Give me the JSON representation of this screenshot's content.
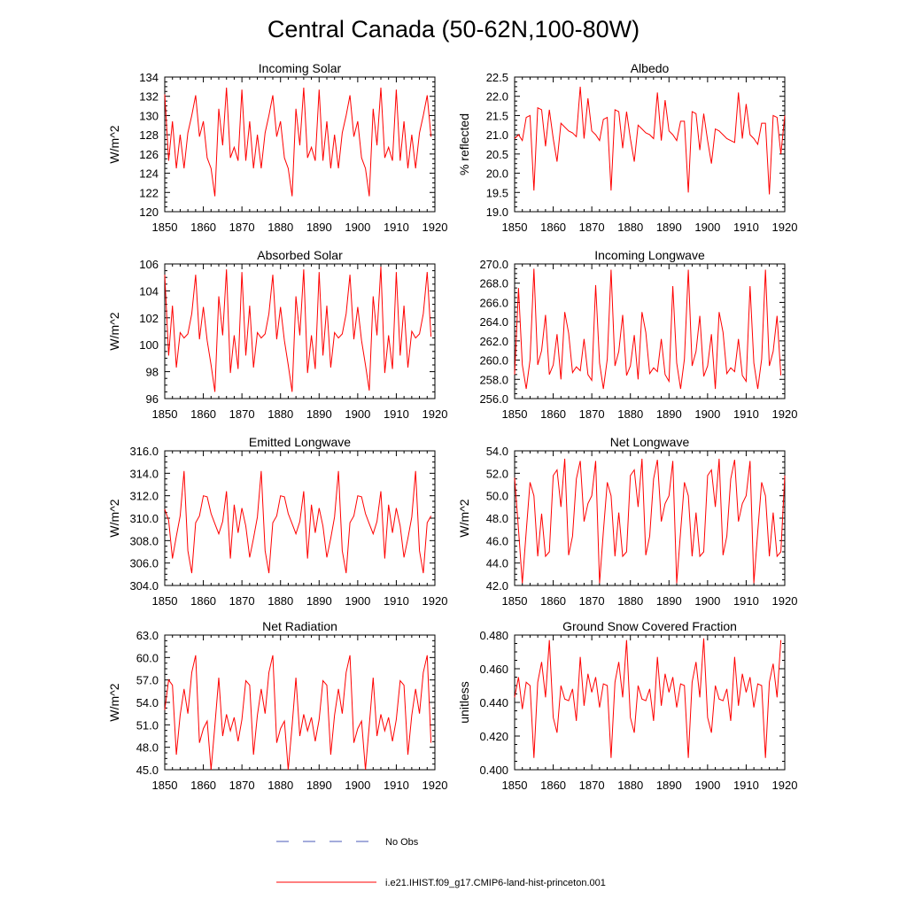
{
  "figure": {
    "title": "Central Canada (50-62N,100-80W)",
    "legend": {
      "obs_label": "No Obs",
      "model_label": "i.e21.IHIST.f09_g17.CMIP6-land-hist-princeton.001",
      "obs_color": "#4a5ab8",
      "model_color": "#ff0000"
    }
  },
  "chart_data": [
    {
      "type": "line",
      "title": "Incoming Solar",
      "ylabel": "W/m^2",
      "xlim": [
        1850,
        1920
      ],
      "ylim": [
        120,
        134
      ],
      "xticks": [
        1850,
        1860,
        1870,
        1880,
        1890,
        1900,
        1910,
        1920
      ],
      "yticks": [
        "120",
        "122",
        "124",
        "126",
        "128",
        "130",
        "132",
        "134"
      ],
      "x_start": 1850,
      "series": [
        {
          "color": "#ff0000",
          "values": [
            132.2,
            125.3,
            129.4,
            124.5,
            128.0,
            124.5,
            128.2,
            130.0,
            132.1,
            127.8,
            129.4,
            125.6,
            124.5,
            121.6,
            130.7,
            126.9,
            132.9,
            125.6,
            126.7,
            125.3,
            132.7,
            125.3,
            129.4,
            124.5,
            128.0,
            124.5,
            128.2,
            130.0,
            132.1,
            127.8,
            129.4,
            125.6,
            124.5,
            121.6,
            130.7,
            126.9,
            132.9,
            125.6,
            126.7,
            125.3,
            132.7,
            125.3,
            129.4,
            124.5,
            128.0,
            124.5,
            128.2,
            130.0,
            132.1,
            127.8,
            129.4,
            125.6,
            124.5,
            121.6,
            130.7,
            126.9,
            132.9,
            125.6,
            126.7,
            125.3,
            132.7,
            125.3,
            129.4,
            124.5,
            128.0,
            124.5,
            128.2,
            130.0,
            132.1,
            127.8
          ]
        }
      ]
    },
    {
      "type": "line",
      "title": "Albedo",
      "ylabel": "% reflected",
      "xlim": [
        1850,
        1920
      ],
      "ylim": [
        19.0,
        22.5
      ],
      "xticks": [
        1850,
        1860,
        1870,
        1880,
        1890,
        1900,
        1910,
        1920
      ],
      "yticks": [
        "19.0",
        "19.5",
        "20.0",
        "20.5",
        "21.0",
        "21.5",
        "22.0",
        "22.5"
      ],
      "x_start": 1850,
      "series": [
        {
          "color": "#ff0000",
          "values": [
            20.9,
            21.0,
            20.85,
            21.45,
            21.5,
            19.55,
            21.7,
            21.65,
            20.7,
            21.65,
            20.9,
            20.3,
            21.3,
            21.2,
            21.1,
            21.05,
            20.95,
            22.25,
            20.9,
            21.95,
            21.1,
            21.0,
            20.85,
            21.4,
            21.45,
            19.55,
            21.65,
            21.6,
            20.65,
            21.6,
            20.9,
            20.3,
            21.25,
            21.15,
            21.05,
            21.0,
            20.9,
            22.1,
            20.85,
            21.9,
            21.1,
            21.0,
            20.85,
            21.35,
            21.35,
            19.5,
            21.6,
            21.55,
            20.6,
            21.55,
            20.85,
            20.25,
            21.15,
            21.1,
            21.0,
            20.9,
            20.85,
            20.8,
            22.1,
            20.9,
            21.8,
            21.0,
            20.9,
            20.75,
            21.3,
            21.3,
            19.45,
            21.5,
            21.45,
            20.5,
            21.5
          ]
        }
      ]
    },
    {
      "type": "line",
      "title": "Absorbed Solar",
      "ylabel": "W/m^2",
      "xlim": [
        1850,
        1920
      ],
      "ylim": [
        96,
        106
      ],
      "xticks": [
        1850,
        1860,
        1870,
        1880,
        1890,
        1900,
        1910,
        1920
      ],
      "yticks": [
        "96",
        "98",
        "100",
        "102",
        "104",
        "106"
      ],
      "x_start": 1850,
      "series": [
        {
          "color": "#ff0000",
          "values": [
            105.2,
            99.2,
            102.9,
            98.3,
            100.9,
            100.5,
            100.8,
            102.3,
            105.2,
            100.4,
            102.8,
            100.3,
            98.5,
            96.5,
            103.6,
            100.7,
            105.6,
            97.9,
            100.7,
            98.2,
            105.4,
            99.2,
            102.9,
            98.3,
            100.9,
            100.5,
            100.8,
            102.3,
            105.2,
            100.4,
            102.8,
            100.3,
            98.5,
            96.5,
            103.6,
            100.7,
            105.6,
            97.9,
            100.7,
            98.2,
            105.4,
            99.2,
            102.9,
            98.3,
            100.9,
            100.5,
            100.8,
            102.3,
            105.2,
            100.4,
            102.8,
            100.3,
            98.5,
            96.6,
            103.6,
            100.7,
            105.8,
            97.9,
            100.7,
            98.2,
            105.4,
            99.2,
            102.9,
            98.3,
            101.0,
            100.5,
            100.8,
            102.3,
            105.4,
            100.6
          ]
        }
      ]
    },
    {
      "type": "line",
      "title": "Incoming Longwave",
      "ylabel": "",
      "xlim": [
        1850,
        1920
      ],
      "ylim": [
        256.0,
        270.0
      ],
      "xticks": [
        1850,
        1860,
        1870,
        1880,
        1890,
        1900,
        1910,
        1920
      ],
      "yticks": [
        "256.0",
        "258.0",
        "260.0",
        "262.0",
        "264.0",
        "266.0",
        "268.0",
        "270.0"
      ],
      "x_start": 1850,
      "series": [
        {
          "color": "#ff0000",
          "values": [
            258.5,
            267.5,
            259.5,
            257.0,
            260.0,
            269.5,
            259.5,
            261.0,
            264.7,
            258.5,
            259.5,
            262.7,
            258.0,
            265.0,
            262.8,
            258.7,
            259.3,
            258.9,
            262.2,
            258.5,
            257.9,
            267.8,
            259.7,
            257.0,
            260.1,
            269.4,
            259.4,
            260.9,
            264.7,
            258.4,
            259.4,
            262.6,
            258.0,
            265.0,
            262.9,
            258.6,
            259.2,
            258.8,
            262.2,
            258.5,
            257.8,
            267.7,
            259.7,
            257.0,
            260.1,
            269.4,
            259.4,
            260.9,
            264.6,
            258.3,
            259.4,
            262.7,
            257.0,
            265.0,
            262.9,
            258.6,
            259.2,
            258.8,
            262.2,
            258.4,
            257.8,
            267.7,
            259.7,
            257.0,
            260.1,
            269.4,
            259.4,
            260.9,
            264.6,
            258.4
          ]
        }
      ]
    },
    {
      "type": "line",
      "title": "Emitted Longwave",
      "ylabel": "W/m^2",
      "xlim": [
        1850,
        1920
      ],
      "ylim": [
        304.0,
        316.0
      ],
      "xticks": [
        1850,
        1860,
        1870,
        1880,
        1890,
        1900,
        1910,
        1920
      ],
      "yticks": [
        "304.0",
        "306.0",
        "308.0",
        "310.0",
        "312.0",
        "314.0",
        "316.0"
      ],
      "x_start": 1850,
      "series": [
        {
          "color": "#ff0000",
          "values": [
            310.8,
            309.8,
            306.4,
            308.4,
            310.2,
            314.2,
            307.1,
            305.1,
            309.6,
            310.2,
            312.0,
            311.9,
            310.4,
            309.5,
            308.6,
            309.7,
            312.4,
            306.4,
            311.2,
            308.7,
            310.9,
            309.3,
            306.5,
            308.2,
            310.1,
            314.2,
            307.1,
            305.1,
            309.6,
            310.2,
            312.0,
            311.9,
            310.4,
            309.5,
            308.6,
            309.7,
            312.4,
            306.4,
            311.2,
            308.7,
            310.9,
            309.3,
            306.5,
            308.2,
            310.1,
            314.2,
            307.1,
            305.1,
            309.6,
            310.2,
            312.0,
            311.9,
            310.4,
            309.5,
            308.6,
            309.7,
            312.4,
            306.4,
            311.2,
            308.7,
            310.9,
            309.3,
            306.5,
            308.2,
            310.1,
            314.2,
            307.1,
            305.1,
            309.6,
            310.2
          ]
        }
      ]
    },
    {
      "type": "line",
      "title": "Net Longwave",
      "ylabel": "W/m^2",
      "xlim": [
        1850,
        1920
      ],
      "ylim": [
        42.0,
        54.0
      ],
      "xticks": [
        1850,
        1860,
        1870,
        1880,
        1890,
        1900,
        1910,
        1920
      ],
      "yticks": [
        "42.0",
        "44.0",
        "46.0",
        "48.0",
        "50.0",
        "52.0",
        "54.0"
      ],
      "x_start": 1850,
      "series": [
        {
          "color": "#ff0000",
          "values": [
            51.6,
            47.0,
            42.2,
            46.8,
            51.2,
            50.0,
            44.6,
            48.4,
            44.6,
            45.0,
            51.8,
            52.3,
            49.0,
            53.3,
            44.7,
            46.4,
            51.5,
            53.1,
            47.7,
            49.3,
            50.0,
            53.1,
            42.2,
            46.8,
            51.2,
            50.0,
            44.6,
            48.5,
            44.6,
            45.0,
            51.8,
            52.3,
            49.0,
            53.3,
            44.7,
            46.4,
            51.5,
            53.2,
            47.7,
            49.3,
            50.0,
            53.1,
            42.2,
            46.8,
            51.2,
            50.0,
            44.6,
            48.5,
            44.6,
            45.0,
            51.8,
            52.3,
            49.0,
            53.3,
            44.7,
            46.4,
            51.5,
            53.2,
            47.7,
            49.3,
            50.0,
            53.1,
            42.2,
            46.8,
            51.2,
            50.0,
            44.6,
            48.5,
            44.6,
            45.0,
            51.8
          ]
        }
      ]
    },
    {
      "type": "line",
      "title": "Net Radiation",
      "ylabel": "W/m^2",
      "xlim": [
        1850,
        1920
      ],
      "ylim": [
        45.0,
        63.0
      ],
      "xticks": [
        1850,
        1860,
        1870,
        1880,
        1890,
        1900,
        1910,
        1920
      ],
      "yticks": [
        "45.0",
        "48.0",
        "51.0",
        "54.0",
        "57.0",
        "60.0",
        "63.0"
      ],
      "x_start": 1850,
      "series": [
        {
          "color": "#ff0000",
          "values": [
            53.0,
            57.0,
            56.3,
            47.0,
            52.3,
            55.8,
            52.5,
            58.0,
            60.3,
            48.6,
            50.5,
            51.5,
            45.0,
            50.9,
            57.3,
            49.5,
            52.4,
            50.2,
            52.0,
            48.8,
            51.7,
            56.9,
            56.3,
            47.0,
            52.3,
            55.8,
            52.5,
            58.0,
            60.3,
            48.6,
            50.5,
            51.5,
            45.0,
            50.9,
            57.3,
            49.5,
            52.4,
            50.2,
            52.0,
            48.8,
            51.7,
            56.9,
            56.3,
            47.0,
            52.3,
            55.8,
            52.5,
            58.0,
            60.3,
            48.6,
            50.5,
            51.5,
            45.0,
            50.9,
            57.3,
            49.5,
            52.4,
            50.2,
            52.0,
            48.8,
            51.7,
            56.9,
            56.3,
            47.0,
            52.3,
            55.8,
            52.5,
            58.0,
            60.3,
            48.6
          ]
        }
      ]
    },
    {
      "type": "line",
      "title": "Ground Snow Covered Fraction",
      "ylabel": "unitless",
      "xlim": [
        1850,
        1920
      ],
      "ylim": [
        0.4,
        0.48
      ],
      "xticks": [
        1850,
        1860,
        1870,
        1880,
        1890,
        1900,
        1910,
        1920
      ],
      "yticks": [
        "0.400",
        "0.420",
        "0.440",
        "0.460",
        "0.480"
      ],
      "x_start": 1850,
      "series": [
        {
          "color": "#ff0000",
          "values": [
            0.443,
            0.455,
            0.436,
            0.452,
            0.45,
            0.407,
            0.452,
            0.464,
            0.443,
            0.477,
            0.431,
            0.422,
            0.45,
            0.442,
            0.441,
            0.448,
            0.429,
            0.467,
            0.438,
            0.457,
            0.446,
            0.455,
            0.437,
            0.451,
            0.45,
            0.407,
            0.452,
            0.464,
            0.443,
            0.477,
            0.431,
            0.422,
            0.45,
            0.442,
            0.441,
            0.448,
            0.429,
            0.467,
            0.438,
            0.457,
            0.446,
            0.455,
            0.437,
            0.451,
            0.45,
            0.407,
            0.452,
            0.464,
            0.443,
            0.478,
            0.431,
            0.422,
            0.45,
            0.442,
            0.441,
            0.448,
            0.429,
            0.467,
            0.438,
            0.457,
            0.446,
            0.455,
            0.437,
            0.451,
            0.45,
            0.407,
            0.452,
            0.463,
            0.443,
            0.477
          ]
        }
      ]
    }
  ]
}
